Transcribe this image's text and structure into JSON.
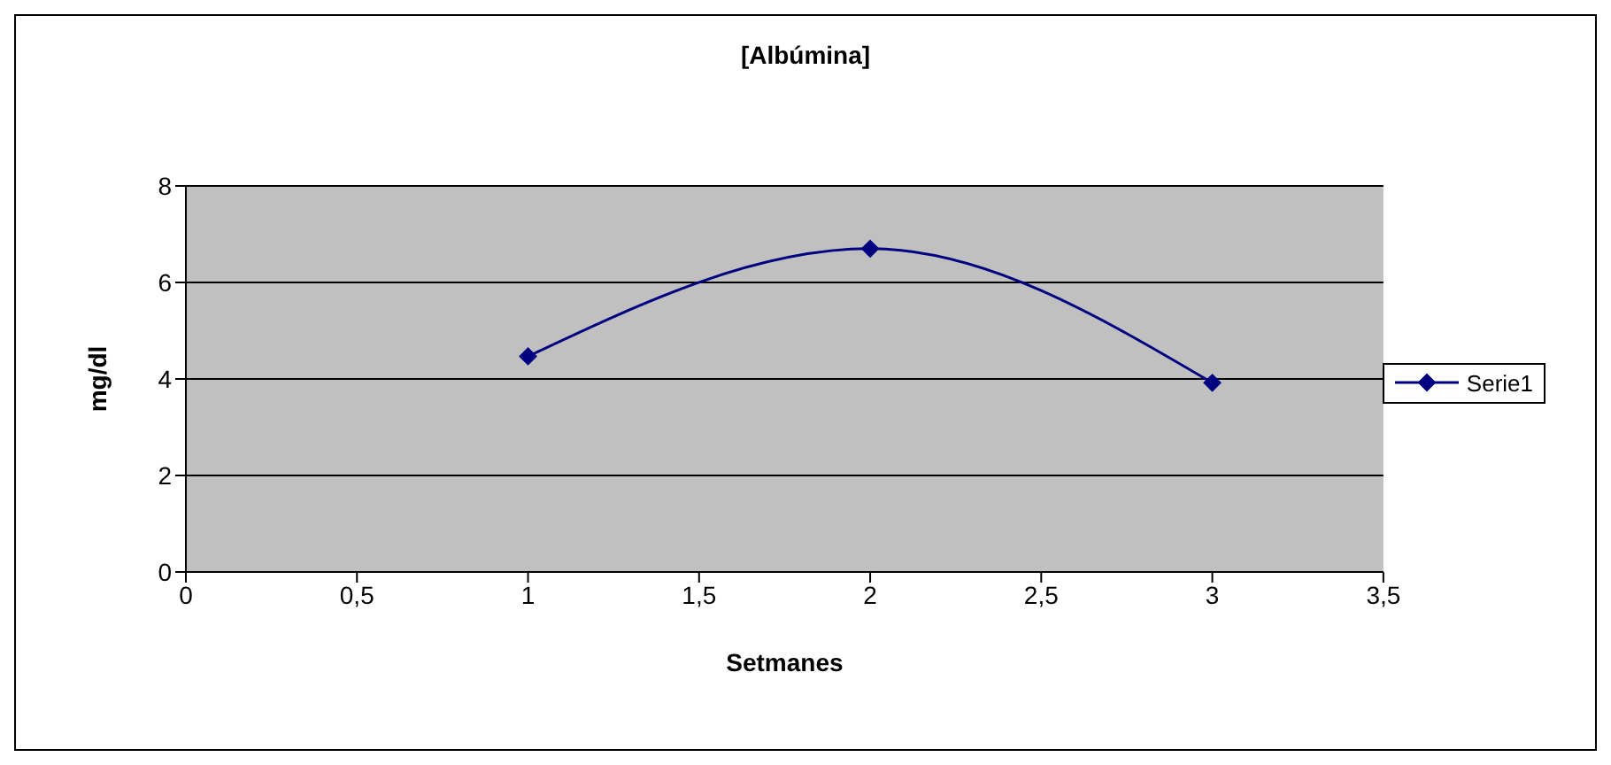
{
  "chart_data": {
    "type": "line",
    "title": "[Albúmina]",
    "xlabel": "Setmanes",
    "ylabel": "mg/dl",
    "x": [
      1,
      2,
      3
    ],
    "series": [
      {
        "name": "Serie1",
        "color": "#000080",
        "values": [
          4.47,
          6.7,
          3.92
        ]
      }
    ],
    "xlim": [
      0,
      3.5
    ],
    "xticks": [
      0,
      {
        "value": 0.5,
        "label": "0,5"
      },
      1,
      {
        "value": 1.5,
        "label": "1,5"
      },
      2,
      {
        "value": 2.5,
        "label": "2,5"
      },
      3,
      {
        "value": 3.5,
        "label": "3,5"
      }
    ],
    "ylim": [
      0,
      8
    ],
    "yticks": [
      0,
      2,
      4,
      6,
      8
    ],
    "grid": "y",
    "legend": "right",
    "marker": "diamond",
    "line_style": "solid"
  }
}
